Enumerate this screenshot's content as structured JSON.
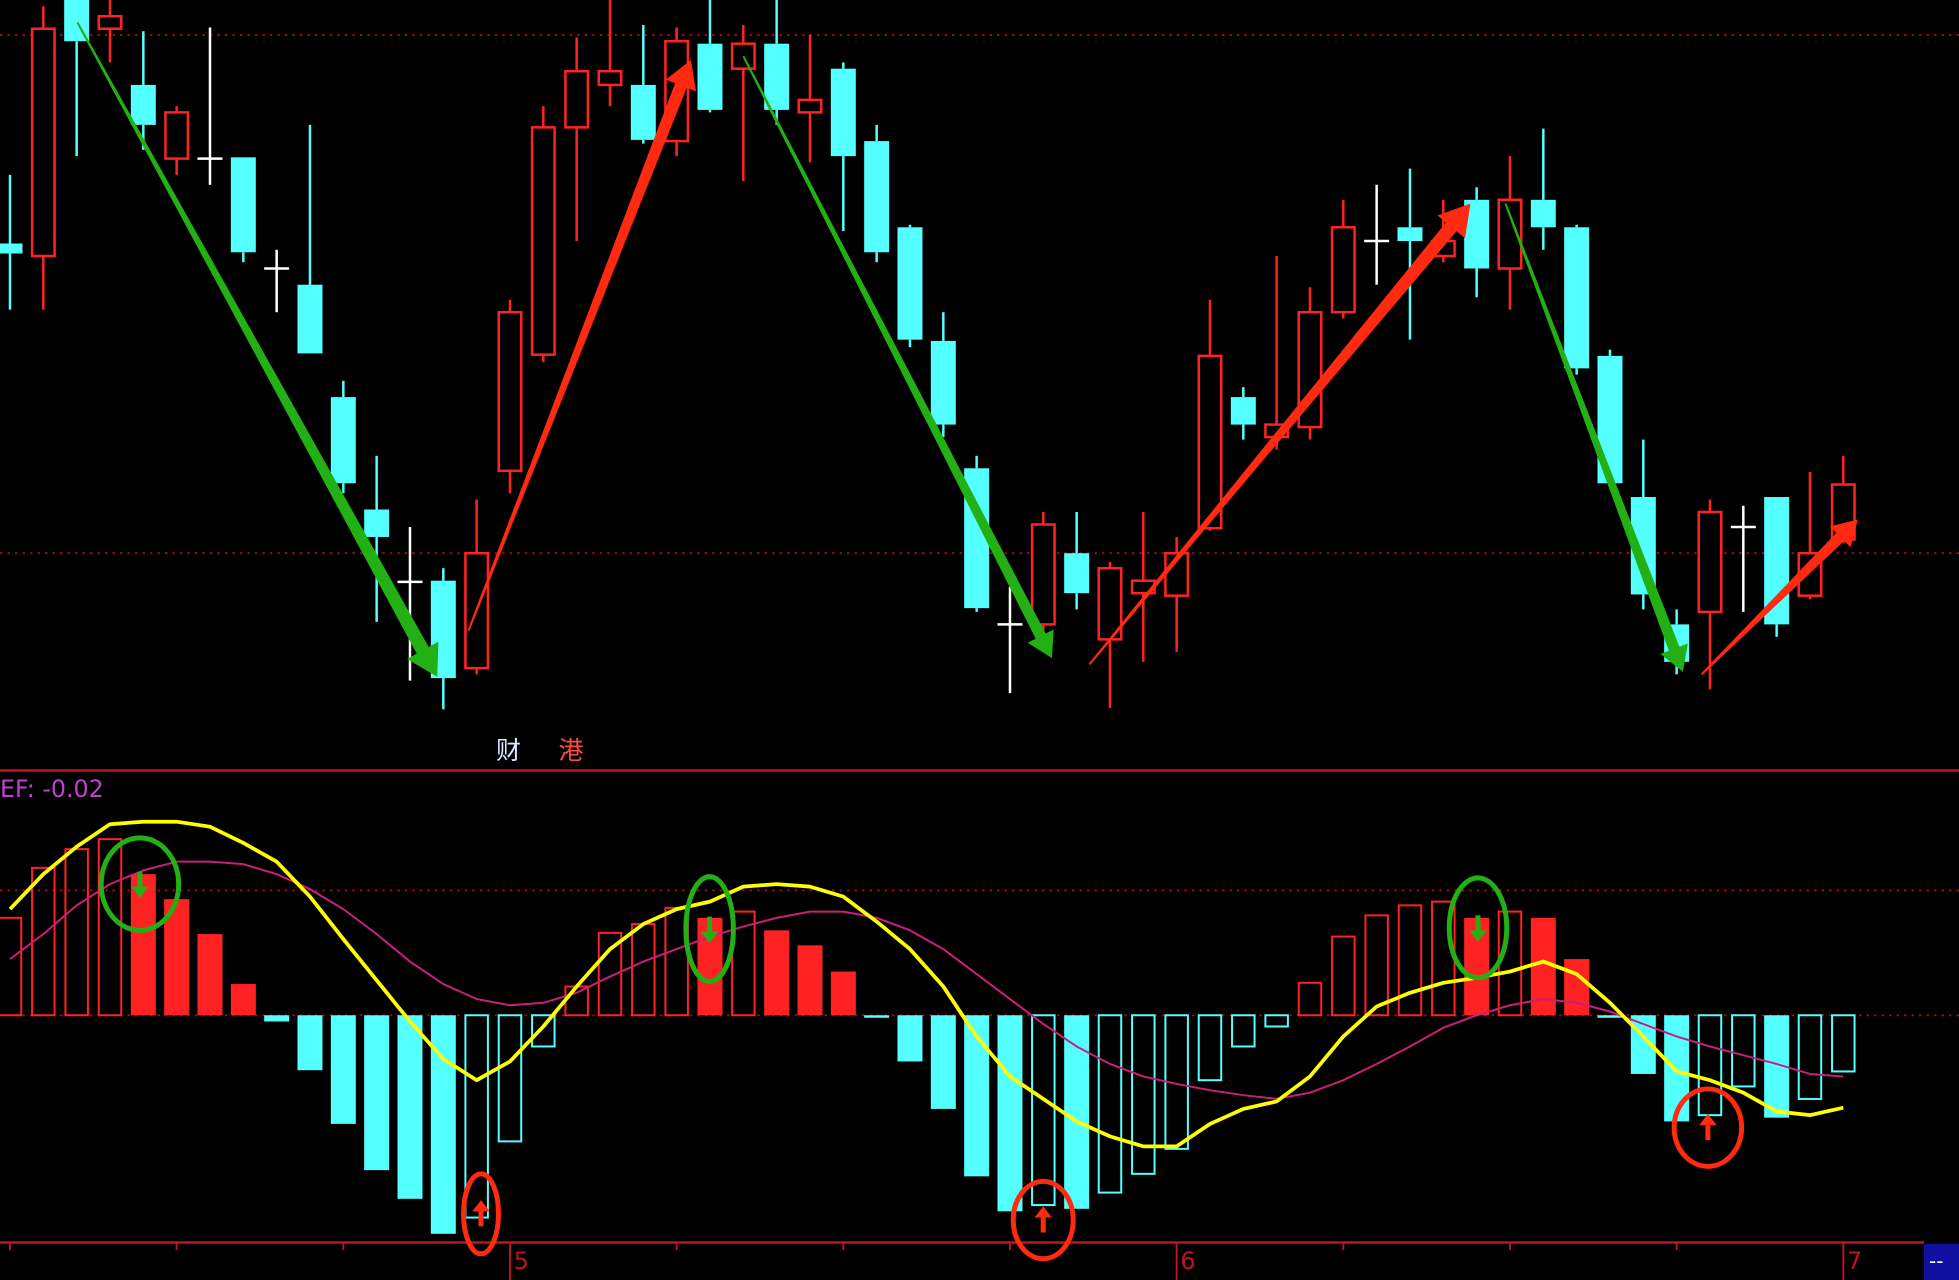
{
  "chart_data": [
    {
      "type": "candlestick",
      "ylim": [
        0,
        600
      ],
      "reference_lines": [
        572,
        157
      ],
      "up_color": "#ff2222",
      "down_color": "#54ffff",
      "flat_color": "#ffffff",
      "labels": [
        "财",
        "港"
      ],
      "open": [
        405,
        395,
        600,
        577,
        532,
        473,
        473,
        474,
        385,
        372,
        282,
        192,
        134,
        135,
        65,
        223,
        316,
        498,
        532,
        532,
        487,
        565,
        545,
        565,
        510,
        545,
        487,
        418,
        327,
        225,
        100,
        100,
        157,
        88,
        125,
        123,
        177,
        282,
        250,
        258,
        350,
        407,
        418,
        395,
        440,
        385,
        440,
        418,
        315,
        202,
        100,
        110,
        178,
        202,
        123,
        168
      ],
      "high": [
        460,
        595,
        600,
        600,
        575,
        515,
        578,
        474,
        400,
        500,
        295,
        235,
        178,
        145,
        200,
        360,
        515,
        570,
        600,
        580,
        578,
        600,
        580,
        600,
        572,
        550,
        500,
        420,
        350,
        235,
        130,
        190,
        190,
        150,
        190,
        170,
        360,
        290,
        395,
        370,
        440,
        452,
        465,
        440,
        450,
        475,
        497,
        420,
        320,
        248,
        112,
        200,
        195,
        202,
        222,
        235
      ],
      "low": [
        352,
        352,
        475,
        550,
        480,
        460,
        452,
        390,
        350,
        317,
        205,
        102,
        55,
        32,
        60,
        205,
        310,
        407,
        515,
        485,
        475,
        510,
        455,
        500,
        470,
        415,
        390,
        322,
        250,
        110,
        45,
        95,
        112,
        33,
        70,
        78,
        175,
        248,
        240,
        248,
        345,
        372,
        328,
        390,
        362,
        352,
        400,
        300,
        210,
        112,
        60,
        48,
        110,
        90,
        120,
        165
      ],
      "close": [
        397,
        577,
        567,
        587,
        500,
        510,
        473,
        398,
        385,
        317,
        213,
        170,
        134,
        57,
        157,
        350,
        498,
        543,
        543,
        488,
        567,
        512,
        565,
        512,
        520,
        475,
        398,
        328,
        260,
        113,
        100,
        180,
        125,
        145,
        135,
        157,
        315,
        260,
        260,
        350,
        418,
        407,
        407,
        407,
        385,
        440,
        418,
        305,
        213,
        124,
        70,
        190,
        178,
        100,
        157,
        212
      ]
    },
    {
      "type": "macd",
      "title": "EF: -0.02",
      "ylim": [
        -0.0546,
        0.0579
      ],
      "reference_lines": [
        0.03,
        0
      ],
      "categories": [
        null,
        null,
        null,
        null,
        null,
        null,
        null,
        null,
        null,
        null,
        null,
        null,
        null,
        null,
        null,
        "5",
        null,
        null,
        null,
        null,
        null,
        null,
        null,
        null,
        null,
        null,
        null,
        null,
        null,
        null,
        null,
        null,
        null,
        null,
        null,
        "6",
        null,
        null,
        null,
        null,
        null,
        null,
        null,
        null,
        null,
        null,
        null,
        null,
        null,
        null,
        null,
        null,
        null,
        null,
        null,
        "7"
      ],
      "corner_label": "--",
      "histogram": {
        "up_color": "#ff2222",
        "down_color": "#54ffff",
        "values": [
          0.0234,
          0.0354,
          0.0399,
          0.0423,
          0.0339,
          0.0279,
          0.0195,
          0.0075,
          -0.0015,
          -0.0132,
          -0.0261,
          -0.0372,
          -0.0441,
          -0.0525,
          -0.0486,
          -0.0303,
          -0.0075,
          0.0069,
          0.0198,
          0.0219,
          0.0258,
          0.0234,
          0.0249,
          0.0204,
          0.0168,
          0.0105,
          -0.0006,
          -0.0111,
          -0.0225,
          -0.0387,
          -0.0471,
          -0.0456,
          -0.0465,
          -0.0426,
          -0.0381,
          -0.0321,
          -0.0156,
          -0.0075,
          -0.0027,
          0.0078,
          0.0189,
          0.024,
          0.0264,
          0.0273,
          0.0234,
          0.0249,
          0.0234,
          0.0135,
          -0.0006,
          -0.0141,
          -0.0255,
          -0.024,
          -0.0171,
          -0.0246,
          -0.0201,
          -0.0135
        ]
      },
      "series": [
        {
          "color": "#ffff00",
          "values": [
            0.0255,
            0.0339,
            0.0405,
            0.0459,
            0.0465,
            0.0465,
            0.0453,
            0.0414,
            0.0369,
            0.0285,
            0.0183,
            0.0084,
            -0.0015,
            -0.0105,
            -0.0156,
            -0.0111,
            -0.0027,
            0.0069,
            0.0159,
            0.0219,
            0.0255,
            0.0273,
            0.0309,
            0.0315,
            0.0309,
            0.0285,
            0.0225,
            0.0159,
            0.0069,
            -0.0051,
            -0.0147,
            -0.0201,
            -0.0255,
            -0.0291,
            -0.0315,
            -0.0315,
            -0.0261,
            -0.0225,
            -0.0207,
            -0.0147,
            -0.0051,
            0.0021,
            0.0054,
            0.0078,
            0.009,
            0.0105,
            0.0129,
            0.0099,
            0.003,
            -0.0051,
            -0.0135,
            -0.0156,
            -0.0186,
            -0.0231,
            -0.024,
            -0.0222
          ]
        },
        {
          "color": "#c8207a",
          "values": [
            0.0135,
            0.0195,
            0.0264,
            0.0315,
            0.0348,
            0.0369,
            0.0369,
            0.0363,
            0.0339,
            0.0303,
            0.0255,
            0.0195,
            0.0129,
            0.0075,
            0.0039,
            0.0024,
            0.003,
            0.0054,
            0.0093,
            0.0129,
            0.0159,
            0.0189,
            0.0213,
            0.0234,
            0.0249,
            0.0249,
            0.0234,
            0.0204,
            0.0159,
            0.0099,
            0.0039,
            -0.0021,
            -0.0075,
            -0.0117,
            -0.0147,
            -0.0165,
            -0.018,
            -0.0192,
            -0.0201,
            -0.0186,
            -0.0156,
            -0.0117,
            -0.0075,
            -0.003,
            0,
            0.0024,
            0.0039,
            0.003,
            0.0009,
            -0.0021,
            -0.0051,
            -0.0075,
            -0.0096,
            -0.0117,
            -0.0141,
            -0.0147
          ]
        }
      ]
    }
  ]
}
